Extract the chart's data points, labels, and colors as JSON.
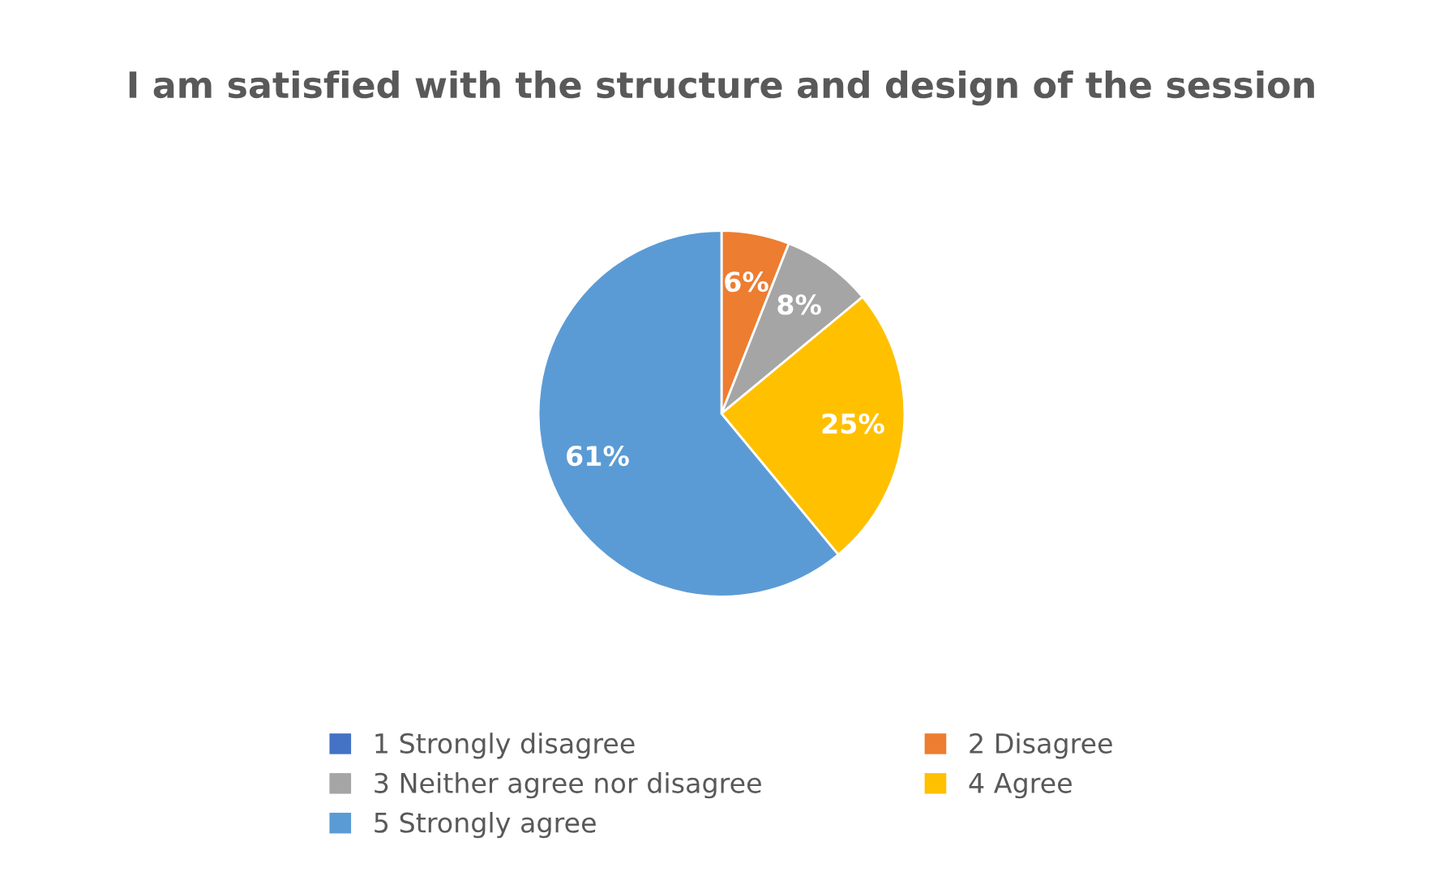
{
  "chart_data": {
    "type": "pie",
    "title": "I am satisfied with the structure and design of the session",
    "categories": [
      "1 Strongly disagree",
      "2 Disagree",
      "3 Neither agree nor disagree",
      "4 Agree",
      "5 Strongly agree"
    ],
    "values": [
      0,
      6,
      8,
      25,
      61
    ],
    "colors": [
      "#4472c4",
      "#ed7d31",
      "#a5a5a5",
      "#ffc000",
      "#5b9bd5"
    ],
    "value_labels": [
      null,
      "6%",
      "8%",
      "25%",
      "61%"
    ],
    "legend": "bottom"
  }
}
